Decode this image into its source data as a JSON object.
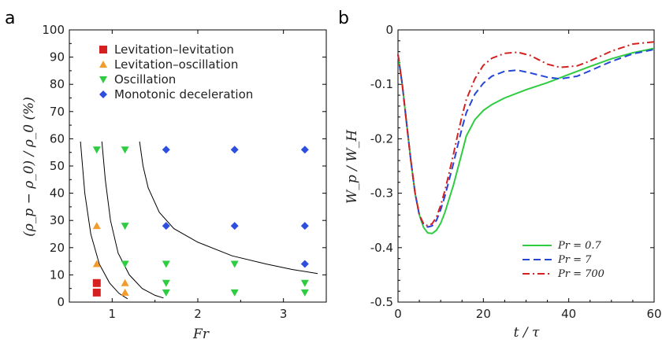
{
  "chart_data": [
    {
      "panel": "a",
      "type": "scatter",
      "xlabel": "Fr",
      "ylabel": "(ρ_p − ρ_0) / ρ_0 (%)",
      "xlim": [
        0.5,
        3.5
      ],
      "ylim": [
        0,
        100
      ],
      "xticks": [
        "1",
        "2",
        "3"
      ],
      "yticks": [
        "0",
        "10",
        "20",
        "30",
        "40",
        "50",
        "60",
        "70",
        "80",
        "90",
        "100"
      ],
      "legend_position": "top-left",
      "series": [
        {
          "name": "Levitation–levitation",
          "marker": "square",
          "color": "#d42020",
          "points": [
            [
              0.82,
              3.5
            ],
            [
              0.82,
              7
            ]
          ]
        },
        {
          "name": "Levitation–oscillation",
          "marker": "triangle-up",
          "color": "#f39c2e",
          "points": [
            [
              0.82,
              14
            ],
            [
              0.82,
              28
            ],
            [
              1.15,
              3.5
            ],
            [
              1.15,
              7
            ]
          ]
        },
        {
          "name": "Oscillation",
          "marker": "triangle-down",
          "color": "#2ecc40",
          "points": [
            [
              0.82,
              56
            ],
            [
              1.15,
              14
            ],
            [
              1.15,
              28
            ],
            [
              1.15,
              56
            ],
            [
              1.63,
              3.5
            ],
            [
              1.63,
              7
            ],
            [
              1.63,
              14
            ],
            [
              2.43,
              3.5
            ],
            [
              2.43,
              14
            ],
            [
              3.25,
              3.5
            ],
            [
              3.25,
              7
            ]
          ]
        },
        {
          "name": "Monotonic deceleration",
          "marker": "diamond",
          "color": "#2d4fe0",
          "points": [
            [
              1.63,
              28
            ],
            [
              1.63,
              56
            ],
            [
              2.43,
              28
            ],
            [
              2.43,
              56
            ],
            [
              3.25,
              14
            ],
            [
              3.25,
              28
            ],
            [
              3.25,
              56
            ]
          ]
        }
      ],
      "boundary_curves": [
        [
          [
            0.63,
            59
          ],
          [
            0.68,
            40
          ],
          [
            0.75,
            25
          ],
          [
            0.85,
            14
          ],
          [
            0.97,
            7
          ],
          [
            1.08,
            3.2
          ],
          [
            1.18,
            1.2
          ]
        ],
        [
          [
            0.88,
            59
          ],
          [
            0.92,
            45
          ],
          [
            0.98,
            30
          ],
          [
            1.07,
            18
          ],
          [
            1.2,
            10
          ],
          [
            1.35,
            5
          ],
          [
            1.5,
            2.5
          ],
          [
            1.6,
            1.5
          ]
        ],
        [
          [
            1.32,
            59
          ],
          [
            1.36,
            50
          ],
          [
            1.42,
            42
          ],
          [
            1.55,
            33
          ],
          [
            1.72,
            27
          ],
          [
            2.0,
            22
          ],
          [
            2.4,
            17
          ],
          [
            2.8,
            14
          ],
          [
            3.1,
            12
          ],
          [
            3.4,
            10.5
          ]
        ]
      ]
    },
    {
      "panel": "b",
      "type": "line",
      "xlabel": "t / τ",
      "ylabel": "W_p / W_H",
      "xlim": [
        0,
        60
      ],
      "ylim": [
        -0.5,
        0
      ],
      "xticks": [
        "0",
        "20",
        "40",
        "60"
      ],
      "yticks": [
        "-0.5",
        "-0.4",
        "-0.3",
        "-0.2",
        "-0.1",
        "0"
      ],
      "legend_position": "bottom-right",
      "series": [
        {
          "name": "Pr = 0.7",
          "color": "#2ecc40",
          "dash": "solid",
          "points": [
            [
              0,
              -0.045
            ],
            [
              1,
              -0.1
            ],
            [
              2,
              -0.17
            ],
            [
              3,
              -0.24
            ],
            [
              4,
              -0.3
            ],
            [
              5,
              -0.34
            ],
            [
              6,
              -0.363
            ],
            [
              7,
              -0.373
            ],
            [
              8,
              -0.374
            ],
            [
              9,
              -0.368
            ],
            [
              10,
              -0.355
            ],
            [
              11,
              -0.335
            ],
            [
              12,
              -0.31
            ],
            [
              13,
              -0.285
            ],
            [
              14,
              -0.255
            ],
            [
              15,
              -0.225
            ],
            [
              16,
              -0.195
            ],
            [
              18,
              -0.165
            ],
            [
              20,
              -0.148
            ],
            [
              22,
              -0.137
            ],
            [
              25,
              -0.125
            ],
            [
              30,
              -0.11
            ],
            [
              35,
              -0.097
            ],
            [
              40,
              -0.082
            ],
            [
              45,
              -0.067
            ],
            [
              50,
              -0.053
            ],
            [
              55,
              -0.042
            ],
            [
              60,
              -0.034
            ]
          ]
        },
        {
          "name": "Pr = 7",
          "color": "#2646d8",
          "dash": "dashed",
          "points": [
            [
              0,
              -0.045
            ],
            [
              1,
              -0.1
            ],
            [
              2,
              -0.17
            ],
            [
              3,
              -0.24
            ],
            [
              4,
              -0.3
            ],
            [
              5,
              -0.34
            ],
            [
              6,
              -0.358
            ],
            [
              7,
              -0.362
            ],
            [
              8,
              -0.36
            ],
            [
              9,
              -0.35
            ],
            [
              10,
              -0.33
            ],
            [
              11,
              -0.305
            ],
            [
              12,
              -0.275
            ],
            [
              13,
              -0.245
            ],
            [
              14,
              -0.212
            ],
            [
              15,
              -0.18
            ],
            [
              16,
              -0.152
            ],
            [
              18,
              -0.118
            ],
            [
              20,
              -0.098
            ],
            [
              22,
              -0.085
            ],
            [
              25,
              -0.076
            ],
            [
              28,
              -0.074
            ],
            [
              31,
              -0.079
            ],
            [
              35,
              -0.087
            ],
            [
              38,
              -0.09
            ],
            [
              42,
              -0.085
            ],
            [
              45,
              -0.075
            ],
            [
              50,
              -0.058
            ],
            [
              55,
              -0.044
            ],
            [
              60,
              -0.036
            ]
          ]
        },
        {
          "name": "Pr = 700",
          "color": "#d42020",
          "dash": "dashdot",
          "points": [
            [
              0,
              -0.045
            ],
            [
              1,
              -0.1
            ],
            [
              2,
              -0.17
            ],
            [
              3,
              -0.24
            ],
            [
              4,
              -0.3
            ],
            [
              5,
              -0.34
            ],
            [
              6,
              -0.356
            ],
            [
              7,
              -0.36
            ],
            [
              8,
              -0.356
            ],
            [
              9,
              -0.344
            ],
            [
              10,
              -0.322
            ],
            [
              11,
              -0.295
            ],
            [
              12,
              -0.262
            ],
            [
              13,
              -0.228
            ],
            [
              14,
              -0.192
            ],
            [
              15,
              -0.158
            ],
            [
              16,
              -0.128
            ],
            [
              18,
              -0.09
            ],
            [
              20,
              -0.065
            ],
            [
              22,
              -0.052
            ],
            [
              25,
              -0.043
            ],
            [
              28,
              -0.041
            ],
            [
              31,
              -0.047
            ],
            [
              35,
              -0.063
            ],
            [
              38,
              -0.069
            ],
            [
              42,
              -0.066
            ],
            [
              45,
              -0.057
            ],
            [
              50,
              -0.039
            ],
            [
              55,
              -0.026
            ],
            [
              60,
              -0.022
            ]
          ]
        }
      ]
    }
  ]
}
